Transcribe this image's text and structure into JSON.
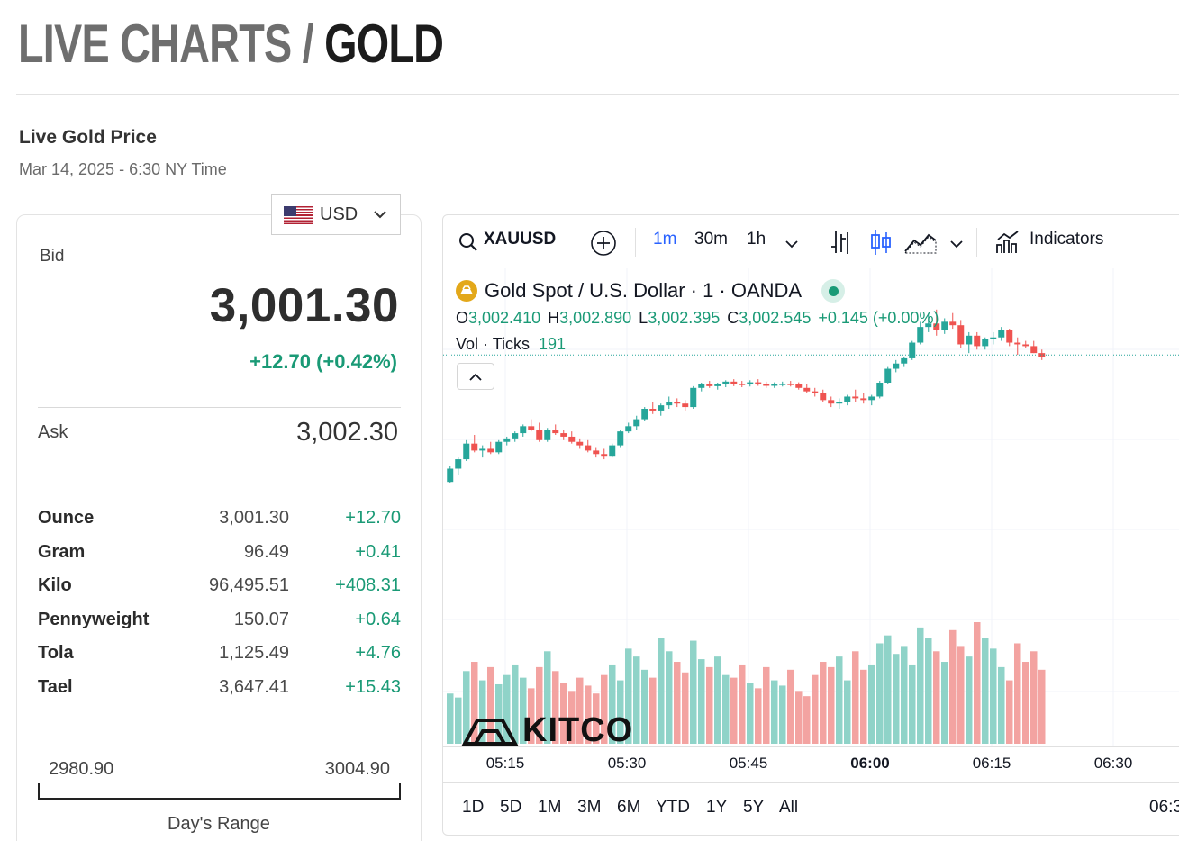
{
  "page_title": {
    "prefix": "LIVE CHARTS /",
    "subject": "GOLD"
  },
  "live_section": {
    "title": "Live Gold Price",
    "date": "Mar 14, 2025 - 6:30 NY Time"
  },
  "currency": {
    "selected": "USD",
    "flag_icon": "us-flag-icon"
  },
  "price_card": {
    "bid_label": "Bid",
    "bid_value": "3,001.30",
    "bid_change": "+12.70 (+0.42%)",
    "ask_label": "Ask",
    "ask_value": "3,002.30",
    "units": [
      {
        "name": "Ounce",
        "price": "3,001.30",
        "change": "+12.70"
      },
      {
        "name": "Gram",
        "price": "96.49",
        "change": "+0.41"
      },
      {
        "name": "Kilo",
        "price": "96,495.51",
        "change": "+408.31"
      },
      {
        "name": "Pennyweight",
        "price": "150.07",
        "change": "+0.64"
      },
      {
        "name": "Tola",
        "price": "1,125.49",
        "change": "+4.76"
      },
      {
        "name": "Tael",
        "price": "3,647.41",
        "change": "+15.43"
      }
    ],
    "range_low": "2980.90",
    "range_high": "3004.90",
    "range_title": "Day's Range"
  },
  "chart_toolbar": {
    "symbol": "XAUUSD",
    "intervals": [
      "1m",
      "30m",
      "1h"
    ],
    "active_interval": "1m",
    "indicators_label": "Indicators"
  },
  "chart_legend": {
    "title": "Gold Spot / U.S. Dollar · 1 · OANDA",
    "ohlc": [
      {
        "k": "O",
        "v": "3,002.410"
      },
      {
        "k": "H",
        "v": "3,002.890"
      },
      {
        "k": "L",
        "v": "3,002.395"
      },
      {
        "k": "C",
        "v": "3,002.545"
      }
    ],
    "change": "+0.145 (+0.00%)",
    "vol_label": "Vol · Ticks",
    "vol_value": "191"
  },
  "watermark": "KITCO",
  "range_buttons": [
    "1D",
    "5D",
    "1M",
    "3M",
    "6M",
    "YTD",
    "1Y",
    "5Y",
    "All"
  ],
  "time_cutoff": "06:3",
  "colors": {
    "up": "#26a69a",
    "down": "#ef5350",
    "up_vol": "#8fd3c8",
    "down_vol": "#f3a3a1",
    "accent_blue": "#2962ff"
  },
  "chart_data": {
    "type": "candlestick",
    "x_ticks": [
      "05:15",
      "05:30",
      "05:45",
      "06:00",
      "06:15",
      "06:30"
    ],
    "x_tick_bold": "06:00",
    "ylim": [
      2996.5,
      3004.0
    ],
    "last_price": 3002.545,
    "candles": [
      [
        2998.9,
        2999.35,
        2998.88,
        2999.28
      ],
      [
        2999.28,
        2999.6,
        2999.1,
        2999.55
      ],
      [
        2999.55,
        3000.1,
        2999.5,
        3000.0
      ],
      [
        3000.0,
        3000.25,
        2999.75,
        2999.8
      ],
      [
        2999.8,
        2999.95,
        2999.6,
        2999.85
      ],
      [
        2999.85,
        3000.05,
        2999.7,
        2999.75
      ],
      [
        2999.75,
        3000.1,
        2999.7,
        3000.05
      ],
      [
        3000.05,
        3000.2,
        2999.95,
        3000.15
      ],
      [
        3000.15,
        3000.35,
        3000.05,
        3000.3
      ],
      [
        3000.3,
        3000.55,
        3000.2,
        3000.5
      ],
      [
        3000.5,
        3000.7,
        3000.35,
        3000.4
      ],
      [
        3000.4,
        3000.6,
        3000.05,
        3000.1
      ],
      [
        3000.1,
        3000.45,
        3000.05,
        3000.4
      ],
      [
        3000.4,
        3000.55,
        3000.25,
        3000.3
      ],
      [
        3000.3,
        3000.4,
        3000.1,
        3000.2
      ],
      [
        3000.2,
        3000.35,
        3000.0,
        3000.05
      ],
      [
        3000.05,
        3000.15,
        2999.85,
        2999.95
      ],
      [
        2999.95,
        3000.1,
        2999.75,
        2999.8
      ],
      [
        2999.8,
        2999.9,
        2999.6,
        2999.7
      ],
      [
        2999.7,
        2999.85,
        2999.55,
        2999.65
      ],
      [
        2999.65,
        3000.0,
        2999.6,
        2999.95
      ],
      [
        2999.95,
        3000.4,
        2999.9,
        3000.35
      ],
      [
        3000.35,
        3000.6,
        3000.3,
        3000.5
      ],
      [
        3000.5,
        3000.8,
        3000.4,
        3000.7
      ],
      [
        3000.7,
        3001.05,
        3000.65,
        3001.0
      ],
      [
        3001.0,
        3001.2,
        3000.85,
        3000.95
      ],
      [
        3000.95,
        3001.15,
        3000.8,
        3001.1
      ],
      [
        3001.1,
        3001.35,
        3001.0,
        3001.2
      ],
      [
        3001.2,
        3001.3,
        3001.05,
        3001.15
      ],
      [
        3001.15,
        3001.25,
        3000.95,
        3001.05
      ],
      [
        3001.05,
        3001.65,
        3001.0,
        3001.6
      ],
      [
        3001.6,
        3001.75,
        3001.5,
        3001.7
      ],
      [
        3001.7,
        3001.8,
        3001.6,
        3001.65
      ],
      [
        3001.65,
        3001.75,
        3001.55,
        3001.7
      ],
      [
        3001.7,
        3001.82,
        3001.62,
        3001.78
      ],
      [
        3001.78,
        3001.85,
        3001.65,
        3001.72
      ],
      [
        3001.72,
        3001.8,
        3001.62,
        3001.7
      ],
      [
        3001.7,
        3001.82,
        3001.64,
        3001.76
      ],
      [
        3001.76,
        3001.85,
        3001.66,
        3001.7
      ],
      [
        3001.7,
        3001.78,
        3001.6,
        3001.66
      ],
      [
        3001.66,
        3001.76,
        3001.6,
        3001.7
      ],
      [
        3001.7,
        3001.78,
        3001.64,
        3001.72
      ],
      [
        3001.72,
        3001.8,
        3001.64,
        3001.7
      ],
      [
        3001.7,
        3001.76,
        3001.55,
        3001.6
      ],
      [
        3001.6,
        3001.7,
        3001.45,
        3001.5
      ],
      [
        3001.5,
        3001.6,
        3001.35,
        3001.45
      ],
      [
        3001.45,
        3001.55,
        3001.2,
        3001.25
      ],
      [
        3001.25,
        3001.35,
        3001.05,
        3001.15
      ],
      [
        3001.15,
        3001.3,
        3001.0,
        3001.2
      ],
      [
        3001.2,
        3001.4,
        3001.1,
        3001.35
      ],
      [
        3001.35,
        3001.55,
        3001.2,
        3001.3
      ],
      [
        3001.3,
        3001.45,
        3001.15,
        3001.25
      ],
      [
        3001.25,
        3001.4,
        3001.1,
        3001.35
      ],
      [
        3001.35,
        3001.8,
        3001.3,
        3001.75
      ],
      [
        3001.75,
        3002.2,
        3001.7,
        3002.15
      ],
      [
        3002.15,
        3002.4,
        3002.05,
        3002.3
      ],
      [
        3002.3,
        3002.5,
        3002.2,
        3002.45
      ],
      [
        3002.45,
        3002.95,
        3002.4,
        3002.9
      ],
      [
        3002.9,
        3003.5,
        3002.85,
        3003.35
      ],
      [
        3003.35,
        3003.75,
        3003.2,
        3003.45
      ],
      [
        3003.45,
        3003.85,
        3003.1,
        3003.25
      ],
      [
        3003.25,
        3003.6,
        3003.15,
        3003.5
      ],
      [
        3003.5,
        3003.75,
        3003.3,
        3003.4
      ],
      [
        3003.4,
        3003.55,
        3002.75,
        3002.85
      ],
      [
        3002.85,
        3003.2,
        3002.6,
        3003.1
      ],
      [
        3003.1,
        3003.2,
        3002.7,
        3002.8
      ],
      [
        3002.8,
        3003.05,
        3002.7,
        3003.0
      ],
      [
        3003.0,
        3003.2,
        3002.85,
        3003.05
      ],
      [
        3003.05,
        3003.35,
        3002.95,
        3003.25
      ],
      [
        3003.25,
        3003.3,
        3002.8,
        3002.9
      ],
      [
        3002.9,
        3003.05,
        3002.55,
        3002.85
      ],
      [
        3002.85,
        3002.95,
        3002.75,
        3002.8
      ],
      [
        3002.8,
        3002.95,
        3002.6,
        3002.6
      ],
      [
        3002.6,
        3002.7,
        3002.4,
        3002.5
      ]
    ],
    "volumes": [
      38,
      35,
      55,
      62,
      48,
      58,
      45,
      52,
      60,
      50,
      42,
      58,
      70,
      55,
      46,
      40,
      50,
      44,
      38,
      52,
      60,
      48,
      72,
      66,
      56,
      50,
      80,
      70,
      62,
      54,
      78,
      64,
      58,
      66,
      52,
      50,
      60,
      46,
      42,
      58,
      48,
      44,
      56,
      40,
      36,
      52,
      62,
      58,
      66,
      48,
      70,
      56,
      60,
      76,
      82,
      68,
      74,
      60,
      88,
      80,
      70,
      62,
      86,
      74,
      66,
      92,
      80,
      72,
      58,
      48,
      76,
      62,
      70,
      56
    ]
  }
}
